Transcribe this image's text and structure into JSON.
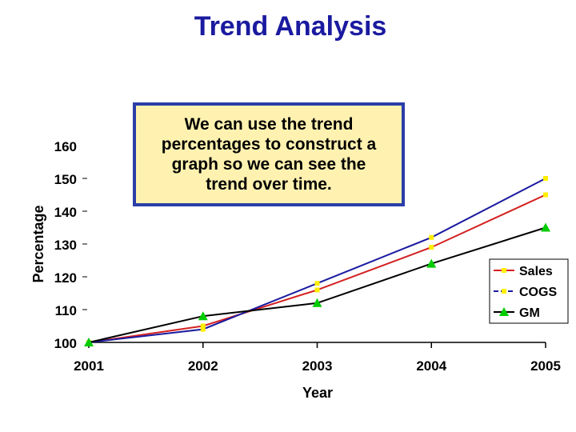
{
  "chart_data": {
    "type": "line",
    "title": "Trend Analysis",
    "xlabel": "Year",
    "ylabel": "Percentage",
    "categories": [
      "2001",
      "2002",
      "2003",
      "2004",
      "2005"
    ],
    "ylim": [
      100,
      160
    ],
    "yticks": [
      100,
      110,
      120,
      130,
      140,
      150,
      160
    ],
    "series": [
      {
        "name": "Sales",
        "values": [
          100,
          105,
          116,
          129,
          145
        ],
        "color": "#d42020",
        "marker_color": "#ffee00",
        "marker": "square"
      },
      {
        "name": "COGS",
        "values": [
          100,
          104,
          118,
          132,
          150
        ],
        "color": "#1a1aa0",
        "marker_color": "#ffee00",
        "marker": "square",
        "dash": true
      },
      {
        "name": "GM",
        "values": [
          100,
          108,
          112,
          124,
          135
        ],
        "color": "#000000",
        "marker_color": "#00cc00",
        "marker": "triangle"
      }
    ],
    "legend_position": "right",
    "grid": false
  },
  "callout": {
    "lines": [
      "We can use the trend",
      "percentages to construct a",
      "graph so we can see the",
      "trend over time."
    ]
  }
}
